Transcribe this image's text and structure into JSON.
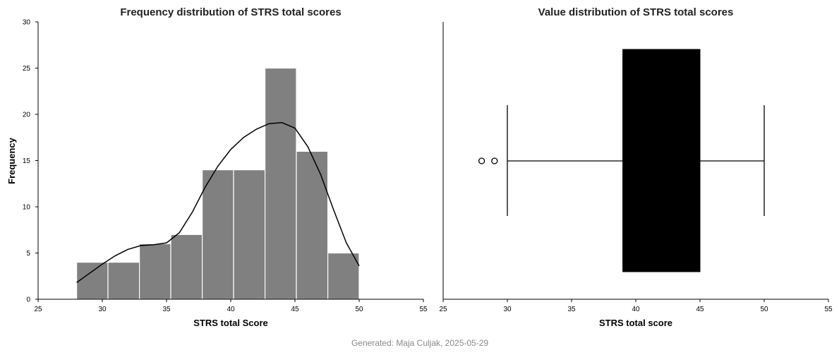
{
  "footer": "Generated: Maja Culjak, 2025-05-29",
  "chart_data": [
    {
      "type": "bar",
      "title": "Frequency distribution of STRS total scores",
      "xlabel": "STRS total Score",
      "ylabel": "Frequency",
      "xlim": [
        25,
        55
      ],
      "ylim": [
        0,
        30
      ],
      "xticks": [
        "25",
        "30",
        "35",
        "40",
        "45",
        "50",
        "55"
      ],
      "yticks": [
        "0",
        "5",
        "10",
        "15",
        "20",
        "25",
        "30"
      ],
      "bins": [
        {
          "x0": 28.0,
          "x1": 30.44,
          "count": 4
        },
        {
          "x0": 30.44,
          "x1": 32.89,
          "count": 4
        },
        {
          "x0": 32.89,
          "x1": 35.33,
          "count": 6
        },
        {
          "x0": 35.33,
          "x1": 37.78,
          "count": 7
        },
        {
          "x0": 37.78,
          "x1": 40.22,
          "count": 14
        },
        {
          "x0": 40.22,
          "x1": 42.67,
          "count": 14
        },
        {
          "x0": 42.67,
          "x1": 45.11,
          "count": 25
        },
        {
          "x0": 45.11,
          "x1": 47.56,
          "count": 16
        },
        {
          "x0": 47.56,
          "x1": 50.0,
          "count": 5
        }
      ],
      "kde": {
        "x": [
          28,
          29,
          30,
          31,
          32,
          33,
          34,
          35,
          36,
          37,
          38,
          39,
          40,
          41,
          42,
          43,
          44,
          45,
          46,
          47,
          48,
          49,
          50
        ],
        "y": [
          1.8,
          2.8,
          3.8,
          4.7,
          5.4,
          5.8,
          5.9,
          6.1,
          7.2,
          9.4,
          12.1,
          14.4,
          16.2,
          17.5,
          18.4,
          19.0,
          19.1,
          18.5,
          16.5,
          13.5,
          9.7,
          6.1,
          3.6
        ]
      },
      "colors": {
        "bar": "#808080",
        "bar_edge": "#ffffff",
        "kde": "#000000"
      }
    },
    {
      "type": "box",
      "title": "Value distribution of STRS total scores",
      "xlabel": "STRS total score",
      "xlim": [
        25,
        55
      ],
      "xticks": [
        "25",
        "30",
        "35",
        "40",
        "45",
        "50",
        "55"
      ],
      "box": {
        "whisker_low": 30,
        "q1": 39,
        "median": 39,
        "q3": 45,
        "whisker_high": 50,
        "outliers": [
          28,
          29
        ]
      },
      "colors": {
        "box": "#000000",
        "whisker": "#000000"
      }
    }
  ]
}
